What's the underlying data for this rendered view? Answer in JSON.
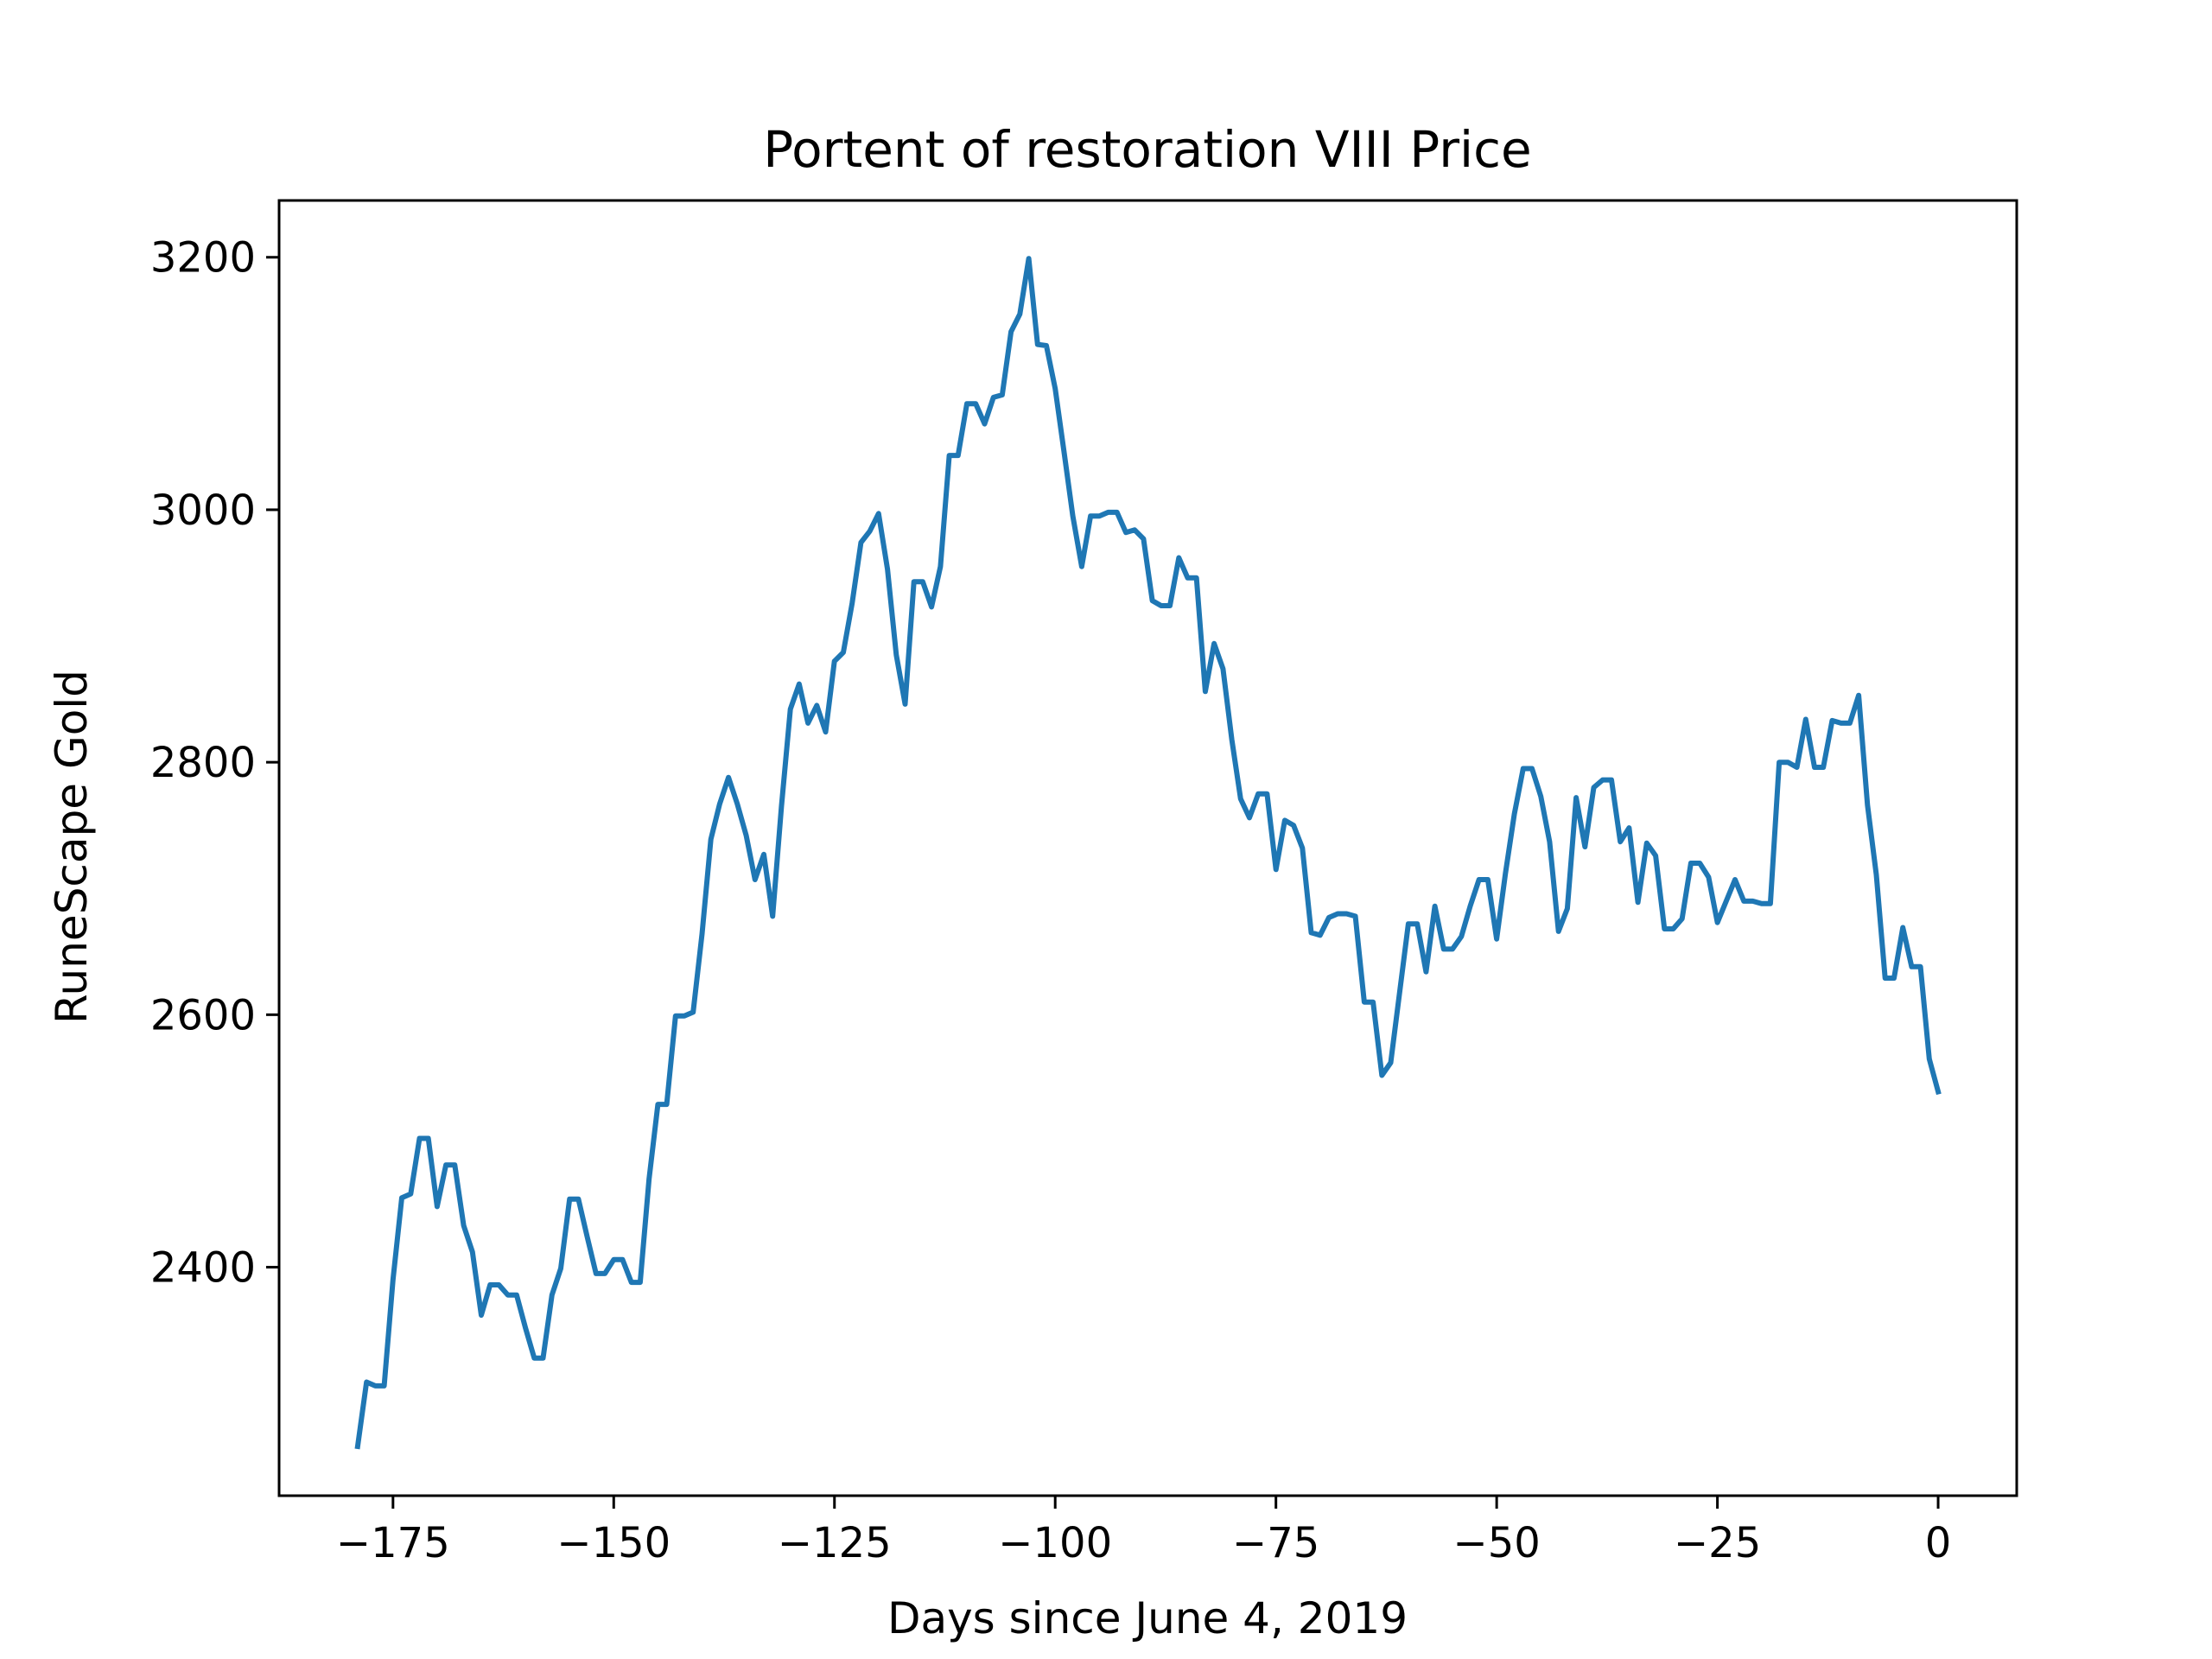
{
  "chart_data": {
    "type": "line",
    "title": "Portent of restoration VIII Price",
    "xlabel": "Days since June 4, 2019",
    "ylabel": "RuneScape Gold",
    "xlim": [
      -187.9,
      8.9
    ],
    "ylim": [
      2219,
      3245
    ],
    "xticks": [
      -175,
      -150,
      -125,
      -100,
      -75,
      -50,
      -25,
      0
    ],
    "xtick_labels": [
      "−175",
      "−150",
      "−125",
      "−100",
      "−75",
      "−50",
      "−25",
      "0"
    ],
    "yticks": [
      2400,
      2600,
      2800,
      3000,
      3200
    ],
    "ytick_labels": [
      "2400",
      "2600",
      "2800",
      "3000",
      "3200"
    ],
    "grid": false,
    "legend": "none",
    "series": [
      {
        "color": "#1f77b4",
        "x": [
          -179,
          -178,
          -177,
          -176,
          -175,
          -174,
          -173,
          -172,
          -171,
          -170,
          -169,
          -168,
          -167,
          -166,
          -165,
          -164,
          -163,
          -162,
          -161,
          -160,
          -159,
          -158,
          -157,
          -156,
          -155,
          -154,
          -153,
          -152,
          -151,
          -150,
          -149,
          -148,
          -147,
          -146,
          -145,
          -144,
          -143,
          -142,
          -141,
          -140,
          -139,
          -138,
          -137,
          -136,
          -135,
          -134,
          -133,
          -132,
          -131,
          -130,
          -129,
          -128,
          -127,
          -126,
          -125,
          -124,
          -123,
          -122,
          -121,
          -120,
          -119,
          -118,
          -117,
          -116,
          -115,
          -114,
          -113,
          -112,
          -111,
          -110,
          -109,
          -108,
          -107,
          -106,
          -105,
          -104,
          -103,
          -102,
          -101,
          -100,
          -99,
          -98,
          -97,
          -96,
          -95,
          -94,
          -93,
          -92,
          -91,
          -90,
          -89,
          -88,
          -87,
          -86,
          -85,
          -84,
          -83,
          -82,
          -81,
          -80,
          -79,
          -78,
          -77,
          -76,
          -75,
          -74,
          -73,
          -72,
          -71,
          -70,
          -69,
          -68,
          -67,
          -66,
          -65,
          -64,
          -63,
          -62,
          -61,
          -60,
          -59,
          -58,
          -57,
          -56,
          -55,
          -54,
          -53,
          -52,
          -51,
          -50,
          -49,
          -48,
          -47,
          -46,
          -45,
          -44,
          -43,
          -42,
          -41,
          -40,
          -39,
          -38,
          -37,
          -36,
          -35,
          -34,
          -33,
          -32,
          -31,
          -30,
          -29,
          -28,
          -27,
          -26,
          -25,
          -24,
          -23,
          -22,
          -21,
          -20,
          -19,
          -18,
          -17,
          -16,
          -15,
          -14,
          -13,
          -12,
          -11,
          -10,
          -9,
          -8,
          -7,
          -6,
          -5,
          -4,
          -3,
          -2,
          -1,
          0
        ],
        "y": [
          2258,
          2309,
          2306,
          2306,
          2390,
          2455,
          2458,
          2502,
          2502,
          2448,
          2481,
          2481,
          2433,
          2412,
          2362,
          2386,
          2386,
          2378,
          2378,
          2352,
          2328,
          2328,
          2378,
          2399,
          2454,
          2454,
          2424,
          2395,
          2395,
          2406,
          2406,
          2388,
          2388,
          2470,
          2529,
          2529,
          2599,
          2599,
          2602,
          2664,
          2739,
          2767,
          2788,
          2767,
          2742,
          2707,
          2727,
          2678,
          2765,
          2842,
          2862,
          2831,
          2845,
          2824,
          2880,
          2887,
          2926,
          2974,
          2983,
          2997,
          2953,
          2885,
          2846,
          2943,
          2943,
          2923,
          2955,
          3043,
          3043,
          3084,
          3084,
          3068,
          3089,
          3091,
          3141,
          3155,
          3199,
          3131,
          3130,
          3096,
          3046,
          2995,
          2955,
          2995,
          2995,
          2998,
          2998,
          2982,
          2984,
          2977,
          2928,
          2924,
          2924,
          2962,
          2946,
          2946,
          2856,
          2894,
          2874,
          2818,
          2771,
          2756,
          2775,
          2775,
          2715,
          2754,
          2750,
          2732,
          2665,
          2663,
          2677,
          2680,
          2680,
          2678,
          2610,
          2610,
          2552,
          2562,
          2617,
          2672,
          2672,
          2634,
          2686,
          2652,
          2652,
          2662,
          2686,
          2707,
          2707,
          2660,
          2712,
          2759,
          2795,
          2795,
          2773,
          2737,
          2666,
          2684,
          2772,
          2733,
          2780,
          2786,
          2786,
          2737,
          2748,
          2689,
          2736,
          2726,
          2668,
          2668,
          2676,
          2720,
          2720,
          2709,
          2673,
          2690,
          2707,
          2690,
          2690,
          2688,
          2688,
          2800,
          2800,
          2796,
          2834,
          2796,
          2796,
          2833,
          2831,
          2831,
          2853,
          2766,
          2711,
          2629,
          2629,
          2669,
          2638,
          2638,
          2565,
          2539
        ]
      }
    ]
  }
}
